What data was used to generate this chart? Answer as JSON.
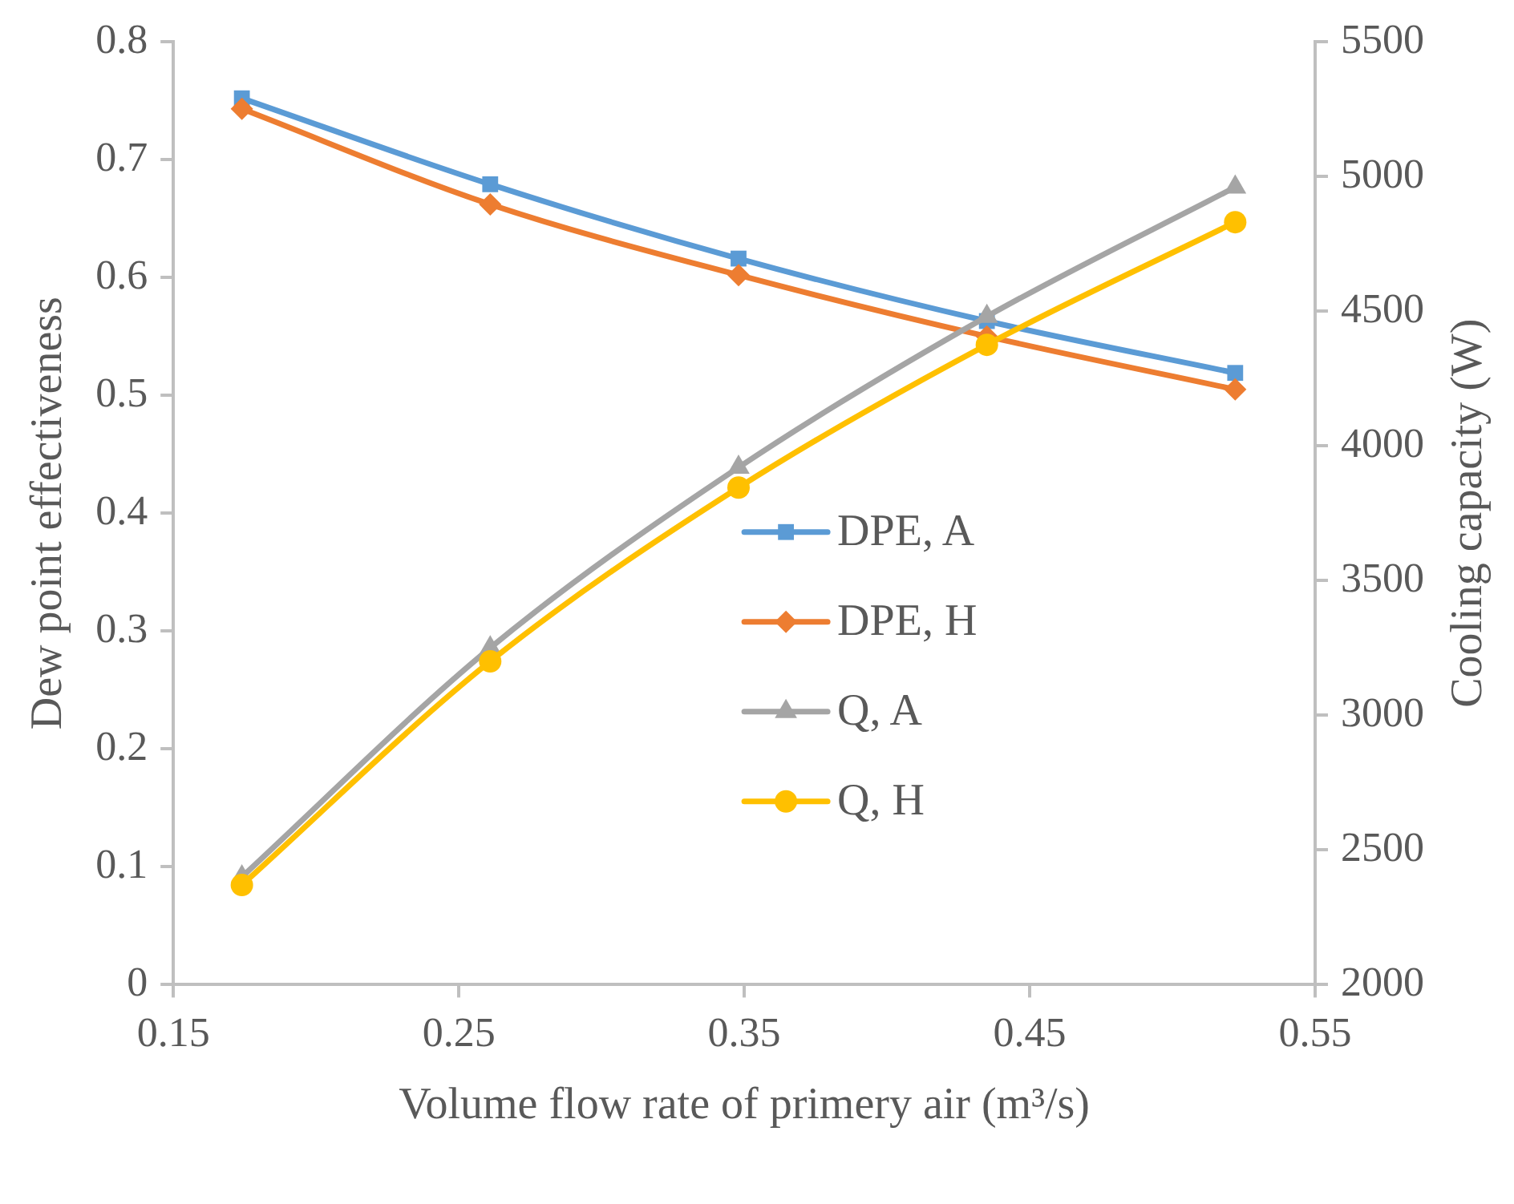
{
  "chart_data": {
    "type": "line",
    "xlabel": "Volume flow rate of primery air (m³/s)",
    "ylabel": "Dew point effectiveness",
    "y2label": "Cooling capacity (W)",
    "x": [
      0.174,
      0.261,
      0.348,
      0.435,
      0.522
    ],
    "series": [
      {
        "name": "DPE, A",
        "color": "#5b9bd5",
        "marker": "square",
        "values": [
          0.752,
          0.679,
          0.616,
          0.563,
          0.519
        ]
      },
      {
        "name": "DPE, H",
        "color": "#ed7d31",
        "marker": "diamond",
        "values": [
          0.743,
          0.662,
          0.602,
          0.55,
          0.505
        ]
      },
      {
        "name": "Q, A",
        "color": "#a5a5a5",
        "marker": "triangle",
        "axis": "y2",
        "values": [
          2400,
          3250,
          3920,
          4480,
          4960
        ]
      },
      {
        "name": "Q, H",
        "color": "#ffc000",
        "marker": "circle",
        "axis": "y2",
        "values": [
          2370,
          3200,
          3845,
          4375,
          4830
        ]
      }
    ],
    "xlim": [
      0.15,
      0.55
    ],
    "xticks": [
      0.15,
      0.25,
      0.35,
      0.45,
      0.55
    ],
    "ylim": [
      0,
      0.8
    ],
    "yticks": [
      0,
      0.1,
      0.2,
      0.3,
      0.4,
      0.5,
      0.6,
      0.7,
      0.8
    ],
    "y2lim": [
      2000,
      5500
    ],
    "y2ticks": [
      2000,
      2500,
      3000,
      3500,
      4000,
      4500,
      5000,
      5500
    ],
    "grid": false,
    "legend": "right"
  }
}
